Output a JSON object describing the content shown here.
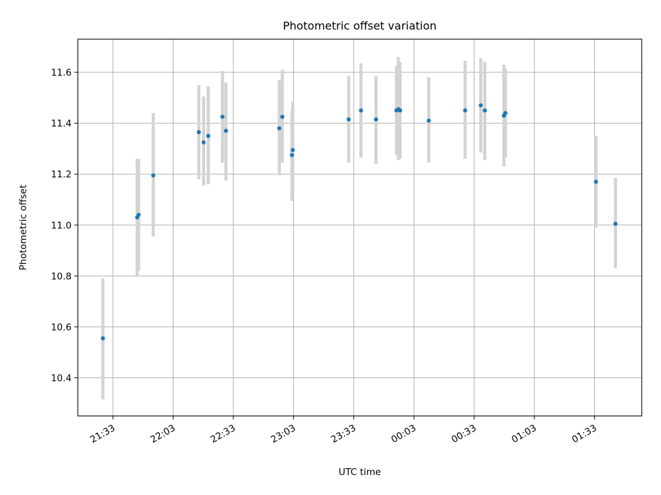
{
  "chart_data": {
    "type": "scatter",
    "title": "Photometric offset variation",
    "xlabel": "UTC time",
    "ylabel": "Photometric offset",
    "x_tick_labels": [
      "21:33",
      "22:03",
      "22:33",
      "23:03",
      "23:33",
      "00:03",
      "00:33",
      "01:03",
      "01:33"
    ],
    "x_tick_minutes": [
      0,
      30,
      60,
      90,
      120,
      150,
      180,
      210,
      240
    ],
    "xlim_minutes": [
      -17.5,
      263.5
    ],
    "y_ticks": [
      "10.4",
      "10.6",
      "10.8",
      "11.0",
      "11.2",
      "11.4",
      "11.6"
    ],
    "ylim": [
      10.25,
      11.73
    ],
    "grid": true,
    "colors": {
      "point": "#1f77b4",
      "errorbar": "#d3d3d3"
    },
    "points": [
      {
        "x": -5.0,
        "y": 10.555,
        "lo": 10.315,
        "hi": 10.79
      },
      {
        "x": 12.1,
        "y": 11.03,
        "lo": 10.8,
        "hi": 11.26
      },
      {
        "x": 12.8,
        "y": 11.04,
        "lo": 10.82,
        "hi": 11.26
      },
      {
        "x": 20.1,
        "y": 11.195,
        "lo": 10.955,
        "hi": 11.44
      },
      {
        "x": 42.8,
        "y": 11.365,
        "lo": 11.18,
        "hi": 11.55
      },
      {
        "x": 45.2,
        "y": 11.325,
        "lo": 11.155,
        "hi": 11.505
      },
      {
        "x": 47.5,
        "y": 11.35,
        "lo": 11.16,
        "hi": 11.545
      },
      {
        "x": 54.6,
        "y": 11.425,
        "lo": 11.245,
        "hi": 11.605
      },
      {
        "x": 56.3,
        "y": 11.37,
        "lo": 11.175,
        "hi": 11.56
      },
      {
        "x": 82.9,
        "y": 11.38,
        "lo": 11.195,
        "hi": 11.57
      },
      {
        "x": 84.4,
        "y": 11.425,
        "lo": 11.245,
        "hi": 11.61
      },
      {
        "x": 89.2,
        "y": 11.275,
        "lo": 11.095,
        "hi": 11.45
      },
      {
        "x": 89.6,
        "y": 11.295,
        "lo": 11.11,
        "hi": 11.485
      },
      {
        "x": 117.5,
        "y": 11.415,
        "lo": 11.245,
        "hi": 11.585
      },
      {
        "x": 123.6,
        "y": 11.45,
        "lo": 11.265,
        "hi": 11.635
      },
      {
        "x": 131.1,
        "y": 11.415,
        "lo": 11.24,
        "hi": 11.585
      },
      {
        "x": 141.3,
        "y": 11.45,
        "lo": 11.275,
        "hi": 11.625
      },
      {
        "x": 142.2,
        "y": 11.455,
        "lo": 11.255,
        "hi": 11.66
      },
      {
        "x": 143.1,
        "y": 11.45,
        "lo": 11.26,
        "hi": 11.64
      },
      {
        "x": 157.4,
        "y": 11.41,
        "lo": 11.245,
        "hi": 11.58
      },
      {
        "x": 175.5,
        "y": 11.45,
        "lo": 11.26,
        "hi": 11.645
      },
      {
        "x": 183.3,
        "y": 11.47,
        "lo": 11.285,
        "hi": 11.655
      },
      {
        "x": 185.3,
        "y": 11.45,
        "lo": 11.255,
        "hi": 11.64
      },
      {
        "x": 194.8,
        "y": 11.43,
        "lo": 11.23,
        "hi": 11.63
      },
      {
        "x": 195.6,
        "y": 11.44,
        "lo": 11.265,
        "hi": 11.615
      },
      {
        "x": 240.7,
        "y": 11.17,
        "lo": 10.99,
        "hi": 11.35
      },
      {
        "x": 250.4,
        "y": 11.005,
        "lo": 10.83,
        "hi": 11.185
      }
    ]
  }
}
